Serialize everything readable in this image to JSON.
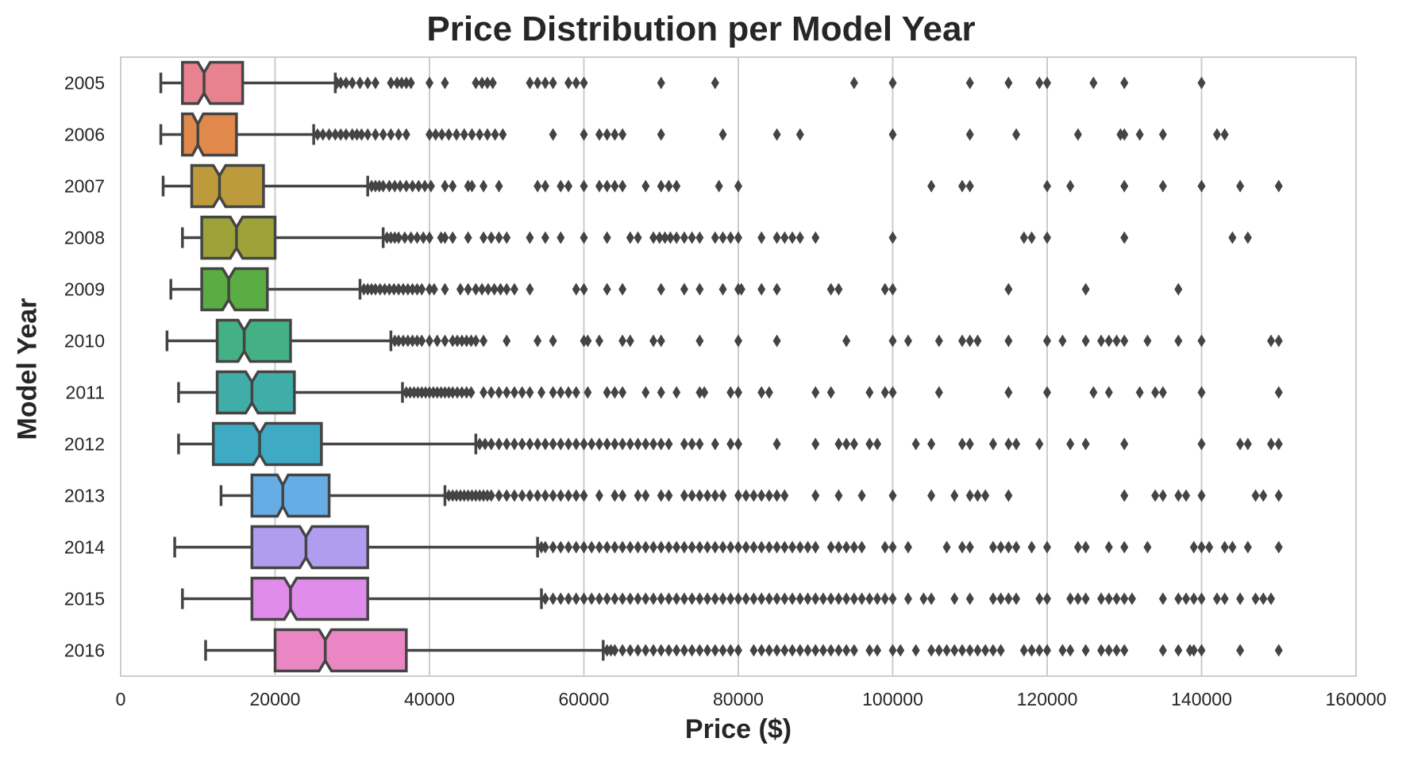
{
  "chart_data": {
    "type": "boxplot",
    "orientation": "horizontal",
    "notched": true,
    "title": "Price Distribution per Model Year",
    "xlabel": "Price ($)",
    "ylabel": "Model Year",
    "xlim": [
      0,
      160000
    ],
    "xticks": [
      0,
      20000,
      40000,
      60000,
      80000,
      100000,
      120000,
      140000,
      160000
    ],
    "xtick_labels": [
      "0",
      "20000",
      "40000",
      "60000",
      "80000",
      "100000",
      "120000",
      "140000",
      "160000"
    ],
    "grid": "vertical",
    "categories": [
      "2005",
      "2006",
      "2007",
      "2008",
      "2009",
      "2010",
      "2011",
      "2012",
      "2013",
      "2014",
      "2015",
      "2016"
    ],
    "colors": [
      "#e8828f",
      "#e0894a",
      "#bd9a3c",
      "#9da338",
      "#5aad42",
      "#43b183",
      "#41ada8",
      "#3eaac4",
      "#66ade6",
      "#b19df0",
      "#e08cea",
      "#ea86c3"
    ],
    "edge_color": "#444444",
    "boxes": [
      {
        "year": "2005",
        "whislo": 5200,
        "q1": 8000,
        "med": 10800,
        "q3": 15800,
        "whishi": 27800,
        "notch": [
          10000,
          11600
        ],
        "fliers": [
          28000,
          28500,
          29200,
          30000,
          31000,
          32000,
          33000,
          35000,
          35800,
          36400,
          37000,
          37600,
          40000,
          42000,
          46000,
          46800,
          47500,
          48200,
          53000,
          54000,
          55000,
          56000,
          58000,
          59000,
          60000,
          70000,
          77000,
          95000,
          100000,
          110000,
          115000,
          119000,
          120000,
          126000,
          130000,
          140000
        ]
      },
      {
        "year": "2006",
        "whislo": 5200,
        "q1": 8000,
        "med": 10000,
        "q3": 15000,
        "whishi": 25000,
        "notch": [
          9300,
          10700
        ],
        "fliers": [
          25500,
          26200,
          27000,
          27800,
          28500,
          29200,
          30000,
          30600,
          31200,
          32000,
          33000,
          34000,
          35000,
          36000,
          37000,
          40000,
          40800,
          41600,
          42500,
          43500,
          44500,
          45500,
          46500,
          47500,
          48500,
          49500,
          56000,
          60000,
          62000,
          63000,
          64000,
          65000,
          70000,
          78000,
          85000,
          88000,
          100000,
          110000,
          116000,
          124000,
          129500,
          130000,
          132000,
          135000,
          142000,
          143000
        ]
      },
      {
        "year": "2007",
        "whislo": 5500,
        "q1": 9200,
        "med": 12800,
        "q3": 18500,
        "whishi": 32000,
        "notch": [
          12000,
          13600
        ],
        "fliers": [
          32500,
          33000,
          33500,
          34000,
          34800,
          35500,
          36200,
          37000,
          37800,
          38600,
          39400,
          40200,
          42000,
          43000,
          45000,
          45500,
          47000,
          49000,
          54000,
          55000,
          57000,
          58000,
          60000,
          62000,
          63000,
          64000,
          65000,
          68000,
          70000,
          71000,
          72000,
          77500,
          80000,
          105000,
          109000,
          110000,
          120000,
          123000,
          130000,
          135000,
          140000,
          145000,
          150000
        ]
      },
      {
        "year": "2008",
        "whislo": 8000,
        "q1": 10500,
        "med": 15000,
        "q3": 20000,
        "whishi": 34000,
        "notch": [
          14200,
          15800
        ],
        "fliers": [
          34500,
          35000,
          35500,
          36000,
          36800,
          37600,
          38400,
          39200,
          40000,
          41500,
          42000,
          43000,
          45000,
          47000,
          48000,
          49000,
          50000,
          53000,
          55000,
          57000,
          60000,
          63000,
          66000,
          67000,
          69000,
          69800,
          70500,
          71200,
          72000,
          73000,
          74000,
          75000,
          77000,
          78000,
          79000,
          80000,
          83000,
          85000,
          86000,
          87000,
          88000,
          90000,
          100000,
          117000,
          118000,
          120000,
          130000,
          144000,
          146000
        ]
      },
      {
        "year": "2009",
        "whislo": 6500,
        "q1": 10500,
        "med": 14000,
        "q3": 19000,
        "whishi": 31000,
        "notch": [
          13200,
          14800
        ],
        "fliers": [
          31500,
          32000,
          32500,
          33000,
          33600,
          34200,
          34800,
          35400,
          36000,
          36600,
          37200,
          37800,
          38400,
          39000,
          40000,
          40600,
          42000,
          44000,
          45000,
          46000,
          46800,
          47600,
          48400,
          49200,
          50000,
          51000,
          53000,
          59000,
          60000,
          63000,
          65000,
          70000,
          73000,
          75000,
          78000,
          80000,
          80400,
          83000,
          85000,
          92000,
          93000,
          99000,
          100000,
          115000,
          125000,
          137000
        ]
      },
      {
        "year": "2010",
        "whislo": 6000,
        "q1": 12500,
        "med": 16000,
        "q3": 22000,
        "whishi": 35000,
        "notch": [
          15200,
          16800
        ],
        "fliers": [
          35500,
          36000,
          36600,
          37200,
          37800,
          38400,
          39000,
          40000,
          41000,
          42000,
          43000,
          43600,
          44200,
          44800,
          45400,
          46000,
          47000,
          50000,
          54000,
          56000,
          60000,
          60500,
          62000,
          65000,
          66000,
          69000,
          70000,
          75000,
          80000,
          85000,
          94000,
          100000,
          102000,
          106000,
          109000,
          110000,
          111000,
          115000,
          120000,
          122000,
          125000,
          127000,
          128000,
          129000,
          130000,
          133000,
          137000,
          140000,
          149000,
          150000
        ]
      },
      {
        "year": "2011",
        "whislo": 7500,
        "q1": 12500,
        "med": 17000,
        "q3": 22500,
        "whishi": 36500,
        "notch": [
          16200,
          17800
        ],
        "fliers": [
          37000,
          37500,
          38000,
          38500,
          39000,
          39500,
          40000,
          40500,
          41000,
          41500,
          42000,
          42500,
          43000,
          43600,
          44200,
          44800,
          45400,
          47000,
          48000,
          49000,
          50000,
          51000,
          52000,
          53000,
          54500,
          56000,
          57000,
          58000,
          59000,
          60500,
          63000,
          64000,
          65000,
          68000,
          70000,
          72000,
          75000,
          75600,
          79000,
          80000,
          83000,
          84000,
          90000,
          92000,
          97000,
          99000,
          100000,
          106000,
          115000,
          120000,
          126000,
          128000,
          132000,
          134000,
          135000,
          140000,
          150000
        ]
      },
      {
        "year": "2012",
        "whislo": 7500,
        "q1": 12000,
        "med": 18000,
        "q3": 26000,
        "whishi": 46000,
        "notch": [
          17200,
          18800
        ],
        "fliers": [
          46500,
          47200,
          48000,
          49000,
          50000,
          51000,
          52000,
          53000,
          54000,
          55000,
          56000,
          57000,
          58000,
          59000,
          60000,
          61000,
          62000,
          63000,
          64000,
          65000,
          66000,
          67000,
          68000,
          69000,
          70000,
          71000,
          73000,
          74000,
          75000,
          77000,
          79000,
          80000,
          85000,
          90000,
          93000,
          94000,
          95000,
          97000,
          98000,
          103000,
          105000,
          109000,
          110000,
          113000,
          115000,
          116000,
          119000,
          123000,
          125000,
          130000,
          140000,
          145000,
          146000,
          149000,
          150000
        ]
      },
      {
        "year": "2013",
        "whislo": 13000,
        "q1": 17000,
        "med": 21000,
        "q3": 27000,
        "whishi": 42000,
        "notch": [
          20300,
          21700
        ],
        "fliers": [
          42500,
          43000,
          43500,
          44000,
          44500,
          45000,
          45500,
          46000,
          46500,
          47000,
          47500,
          48000,
          49000,
          50000,
          51000,
          52000,
          53000,
          54000,
          55000,
          56000,
          57000,
          58000,
          59000,
          60000,
          62000,
          64000,
          65000,
          67000,
          68000,
          70000,
          71000,
          73000,
          74000,
          75000,
          76000,
          77000,
          78000,
          80000,
          81000,
          82000,
          83000,
          84000,
          85000,
          86000,
          90000,
          93000,
          96000,
          100000,
          105000,
          108000,
          110000,
          111000,
          112000,
          115000,
          130000,
          134000,
          135000,
          137000,
          138000,
          140000,
          147000,
          148000,
          150000
        ]
      },
      {
        "year": "2014",
        "whislo": 7000,
        "q1": 17000,
        "med": 24000,
        "q3": 32000,
        "whishi": 54000,
        "notch": [
          23200,
          24800
        ],
        "fliers": [
          54500,
          55000,
          56000,
          57000,
          58000,
          59000,
          60000,
          61000,
          62000,
          63000,
          64000,
          65000,
          66000,
          67000,
          68000,
          69000,
          70000,
          71000,
          72000,
          73000,
          74000,
          75000,
          76000,
          77000,
          78000,
          79000,
          80000,
          81000,
          82000,
          83000,
          84000,
          85000,
          86000,
          87000,
          88000,
          89000,
          90000,
          92000,
          93000,
          94000,
          95000,
          96000,
          99000,
          100000,
          102000,
          107000,
          109000,
          110000,
          113000,
          114000,
          115000,
          116000,
          118000,
          120000,
          124000,
          125000,
          128000,
          130000,
          133000,
          139000,
          140000,
          141000,
          143000,
          144000,
          146000,
          150000
        ]
      },
      {
        "year": "2015",
        "whislo": 8000,
        "q1": 17000,
        "med": 22000,
        "q3": 32000,
        "whishi": 54500,
        "notch": [
          21200,
          22800
        ],
        "fliers": [
          55000,
          56000,
          57000,
          58000,
          59000,
          60000,
          61000,
          62000,
          63000,
          64000,
          65000,
          66000,
          67000,
          68000,
          69000,
          70000,
          71000,
          72000,
          73000,
          74000,
          75000,
          76000,
          77000,
          78000,
          79000,
          80000,
          81000,
          82000,
          83000,
          84000,
          85000,
          86000,
          87000,
          88000,
          89000,
          90000,
          91000,
          92000,
          93000,
          94000,
          95000,
          96000,
          97000,
          98000,
          99000,
          100000,
          102000,
          104000,
          105000,
          108000,
          110000,
          113000,
          114000,
          115000,
          116000,
          119000,
          120000,
          123000,
          124000,
          125000,
          127000,
          128000,
          129000,
          130000,
          131000,
          135000,
          137000,
          138000,
          139000,
          140000,
          142000,
          143000,
          145000,
          147000,
          148000,
          149000
        ]
      },
      {
        "year": "2016",
        "whislo": 11000,
        "q1": 20000,
        "med": 26500,
        "q3": 37000,
        "whishi": 62500,
        "notch": [
          25700,
          27300
        ],
        "fliers": [
          63000,
          63500,
          64000,
          65000,
          66000,
          67000,
          68000,
          69000,
          70000,
          71000,
          72000,
          73000,
          74000,
          75000,
          76000,
          77000,
          78000,
          79000,
          80000,
          82000,
          83000,
          84000,
          85000,
          86000,
          87000,
          88000,
          89000,
          90000,
          91000,
          92000,
          93000,
          94000,
          95000,
          97000,
          98000,
          100000,
          101000,
          103000,
          105000,
          106000,
          107000,
          108000,
          109000,
          110000,
          111000,
          112000,
          113000,
          114000,
          117000,
          118000,
          119000,
          120000,
          122000,
          123000,
          125000,
          127000,
          128000,
          129000,
          130000,
          135000,
          137000,
          138500,
          139000,
          140000,
          145000,
          150000
        ]
      }
    ]
  }
}
